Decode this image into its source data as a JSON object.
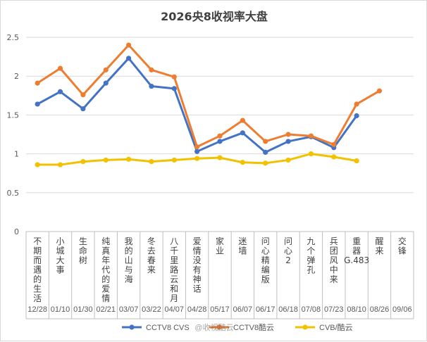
{
  "chart_data": {
    "type": "line",
    "title": "2026央8收视率大盘",
    "xlabel": "",
    "ylabel": "",
    "ylim": [
      0,
      2.5
    ],
    "yticks": [
      "0",
      "0.5",
      "1",
      "1.5",
      "2",
      "2.5"
    ],
    "grid": true,
    "legend_position": "bottom",
    "categories": [
      "不期而遇的生活",
      "小城大事",
      "生命树",
      "纯真年代的爱情",
      "我的山与海",
      "冬去春来",
      "八千里路云和月",
      "爱情没有神话",
      "家业",
      "迷墙",
      "问心精编版",
      "问心2",
      "九个弹孔",
      "兵团风中来",
      "重器G.483",
      "醒来",
      "交锋"
    ],
    "dates": [
      "12/28",
      "01/10",
      "01/30",
      "02/21",
      "03/07",
      "03/22",
      "04/07",
      "04/28",
      "05/17",
      "06/07",
      "06/17",
      "06/18",
      "07/08",
      "07/23",
      "08/10",
      "08/26",
      "09/06"
    ],
    "series": [
      {
        "name": "CCTV8 CVS",
        "color": "#4472C4",
        "values": [
          1.64,
          1.8,
          1.58,
          1.91,
          2.23,
          1.87,
          1.84,
          1.03,
          1.16,
          1.27,
          1.02,
          1.16,
          1.22,
          1.08,
          1.49,
          null,
          null
        ]
      },
      {
        "name": "CCTV8酷云",
        "color": "#ED7D31",
        "values": [
          1.91,
          2.1,
          1.76,
          2.08,
          2.4,
          2.08,
          1.99,
          1.09,
          1.23,
          1.43,
          1.16,
          1.25,
          1.23,
          1.12,
          1.64,
          1.81,
          null
        ]
      },
      {
        "name": "CVB/酷云",
        "color": "#F2C100",
        "values": [
          0.86,
          0.86,
          0.9,
          0.92,
          0.93,
          0.9,
          0.92,
          0.94,
          0.95,
          0.89,
          0.88,
          0.92,
          1.0,
          0.96,
          0.91,
          null,
          null
        ]
      }
    ]
  },
  "watermark": "@收视酷云"
}
